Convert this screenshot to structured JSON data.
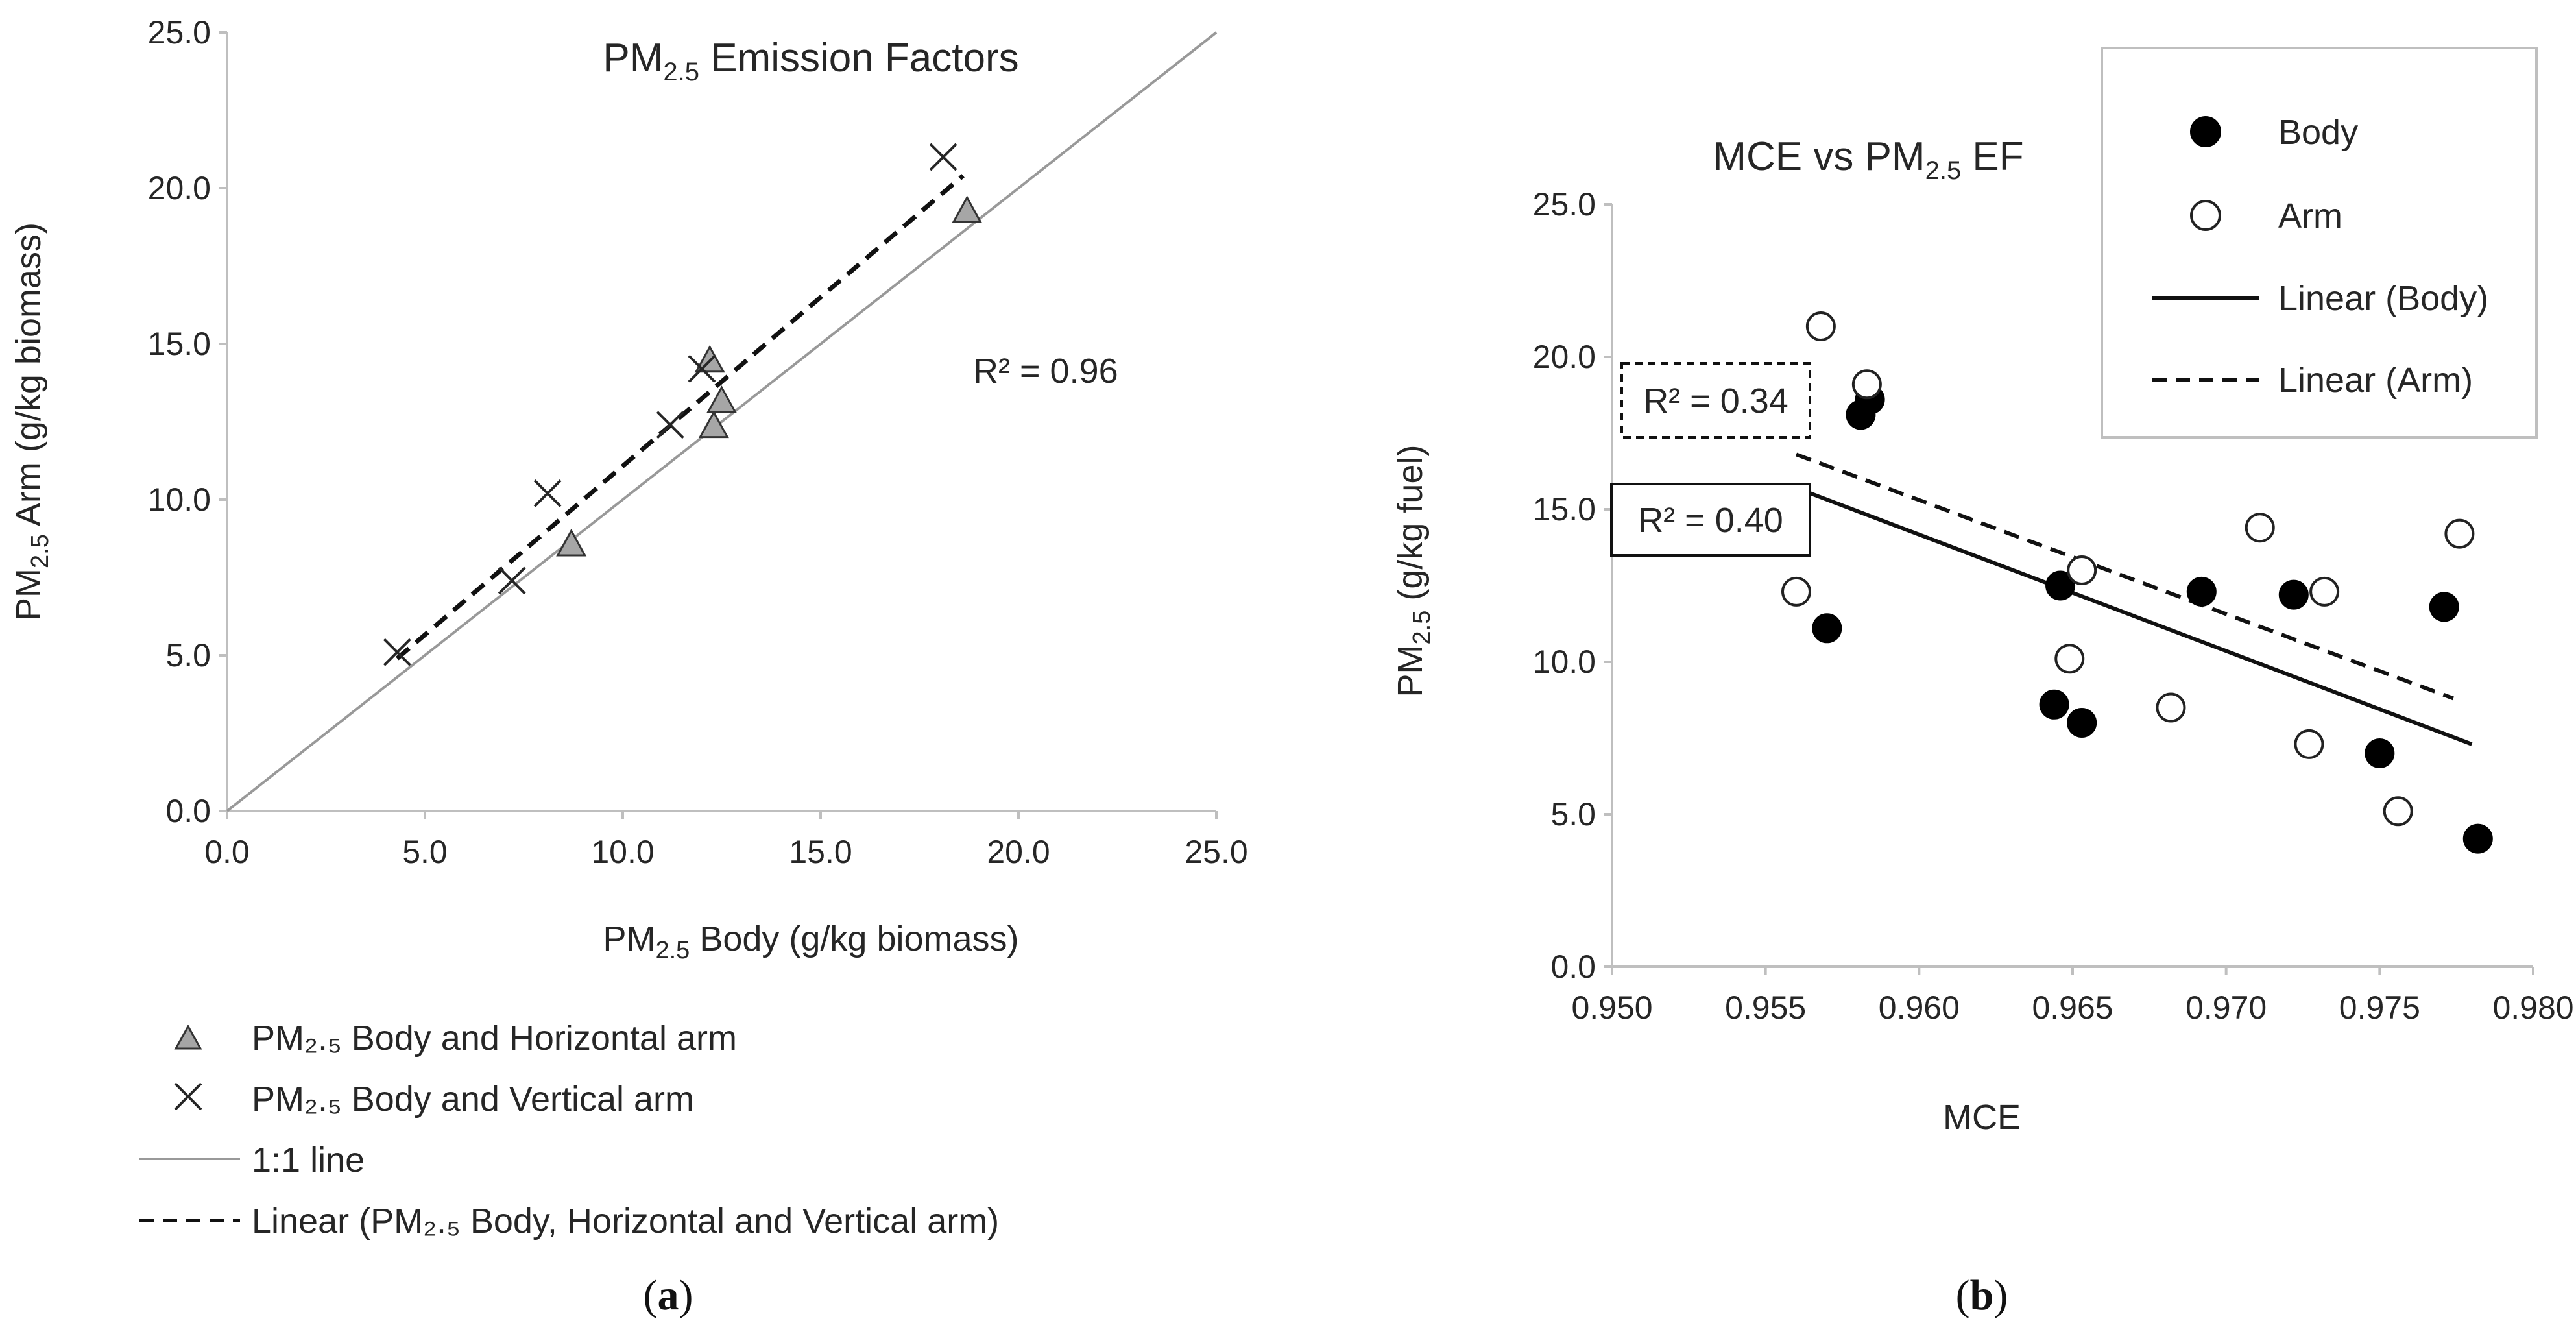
{
  "chart_data": [
    {
      "panel": "(a)",
      "panel_letter": "a",
      "type": "scatter",
      "title": "PM2.5 Emission Factors",
      "xlabel": "PM2.5 Body (g/kg biomass)",
      "ylabel": "PM2.5 Arm (g/kg biomass)",
      "xlim": [
        0,
        25
      ],
      "ylim": [
        0,
        25
      ],
      "xticks": [
        "0.0",
        "5.0",
        "10.0",
        "15.0",
        "20.0",
        "25.0"
      ],
      "yticks": [
        "0.0",
        "5.0",
        "10.0",
        "15.0",
        "20.0",
        "25.0"
      ],
      "series": [
        {
          "name": "PM₂.₅ Body and Horizontal arm",
          "marker": "triangle",
          "color": "#a6a6a6",
          "points": [
            [
              8.7,
              8.5
            ],
            [
              12.2,
              14.4
            ],
            [
              12.3,
              12.3
            ],
            [
              12.5,
              13.1
            ],
            [
              18.7,
              19.2
            ]
          ]
        },
        {
          "name": "PM₂.₅ Body and Vertical arm",
          "marker": "x",
          "color": "#262626",
          "points": [
            [
              4.3,
              5.1
            ],
            [
              7.2,
              7.4
            ],
            [
              8.1,
              10.2
            ],
            [
              11.2,
              12.4
            ],
            [
              12.0,
              14.2
            ],
            [
              18.1,
              21.0
            ]
          ]
        }
      ],
      "one_to_one_label": "1:1 line",
      "one_to_one": [
        [
          0,
          0
        ],
        [
          25,
          25
        ]
      ],
      "fit_label": "Linear (PM₂.₅ Body, Horizontal and Vertical arm)",
      "fit_line": [
        [
          4.3,
          4.9
        ],
        [
          18.6,
          20.4
        ]
      ],
      "r2_label": "R² = 0.96"
    },
    {
      "panel": "(b)",
      "panel_letter": "b",
      "type": "scatter",
      "title": "MCE vs PM2.5 EF",
      "xlabel": "MCE",
      "ylabel": "PM2.5 (g/kg fuel)",
      "xlim": [
        0.95,
        0.98
      ],
      "ylim": [
        0,
        25
      ],
      "xticks": [
        "0.950",
        "0.955",
        "0.960",
        "0.965",
        "0.970",
        "0.975",
        "0.980"
      ],
      "yticks": [
        "0.0",
        "5.0",
        "10.0",
        "15.0",
        "20.0",
        "25.0"
      ],
      "series": [
        {
          "name": "Body",
          "marker": "filled-circle",
          "color": "#000000",
          "points": [
            [
              0.957,
              11.1
            ],
            [
              0.9581,
              18.1
            ],
            [
              0.9584,
              18.6
            ],
            [
              0.9644,
              8.6
            ],
            [
              0.9646,
              12.5
            ],
            [
              0.9653,
              8.0
            ],
            [
              0.9692,
              12.3
            ],
            [
              0.9722,
              12.2
            ],
            [
              0.975,
              7.0
            ],
            [
              0.9771,
              11.8
            ],
            [
              0.9782,
              4.2
            ]
          ]
        },
        {
          "name": "Arm",
          "marker": "open-circle",
          "color": "#ffffff",
          "points": [
            [
              0.956,
              12.3
            ],
            [
              0.9568,
              21.0
            ],
            [
              0.9583,
              19.1
            ],
            [
              0.9649,
              10.1
            ],
            [
              0.9653,
              13.0
            ],
            [
              0.9682,
              8.5
            ],
            [
              0.9711,
              14.4
            ],
            [
              0.9727,
              7.3
            ],
            [
              0.9732,
              12.3
            ],
            [
              0.9756,
              5.1
            ],
            [
              0.9776,
              14.2
            ]
          ]
        }
      ],
      "fits": [
        {
          "name": "Linear (Body)",
          "style": "solid",
          "points": [
            [
              0.956,
              15.7
            ],
            [
              0.978,
              7.3
            ]
          ],
          "r2_label": "R² = 0.40"
        },
        {
          "name": "Linear (Arm)",
          "style": "dashed",
          "points": [
            [
              0.956,
              16.8
            ],
            [
              0.9774,
              8.8
            ]
          ],
          "r2_label": "R² = 0.34"
        }
      ]
    }
  ]
}
